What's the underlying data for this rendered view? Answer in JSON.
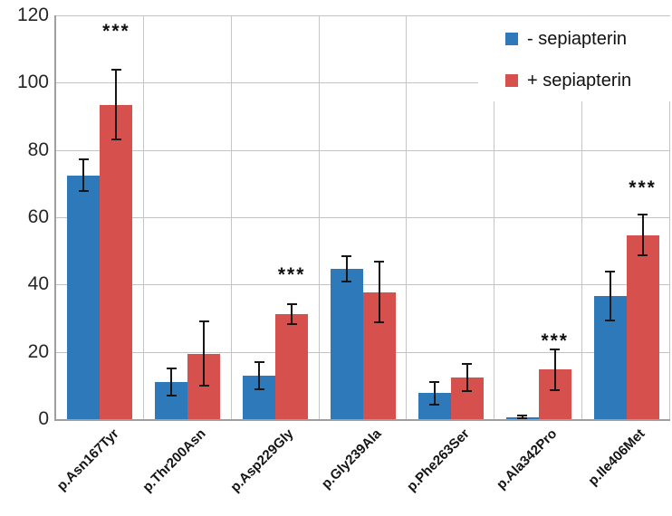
{
  "figure": {
    "background": "#ffffff",
    "text_color": "#1a1a1a",
    "gridline_color": "#c6c6c6",
    "axis_color": "#9f9f9f"
  },
  "chart_data": {
    "type": "bar",
    "title": "",
    "xlabel": "",
    "ylabel": "",
    "categories": [
      "p.Asn167Tyr",
      "p.Thr200Asn",
      "p.Asp229Gly",
      "p.Gly239Ala",
      "p.Phe263Ser",
      "p.Ala342Pro",
      "p.Ile406Met"
    ],
    "series": [
      {
        "name": "- sepiapterin",
        "color": "#2d79ba",
        "values": [
          72.5,
          11,
          13,
          44.7,
          7.7,
          0.6,
          36.5
        ],
        "errors": [
          5,
          4.4,
          4.3,
          4.1,
          3.6,
          0.5,
          7.5
        ]
      },
      {
        "name": "+ sepiapterin",
        "color": "#d6514e",
        "values": [
          93.5,
          19.5,
          31.2,
          37.8,
          12.5,
          14.7,
          54.7
        ],
        "errors": [
          10.5,
          9.9,
          3.2,
          9.4,
          4.3,
          6.3,
          6.3
        ]
      }
    ],
    "significance": [
      {
        "category_index": 0,
        "label": "***",
        "y": 112.5
      },
      {
        "category_index": 2,
        "label": "***",
        "y": 40
      },
      {
        "category_index": 5,
        "label": "***",
        "y": 20.5
      },
      {
        "category_index": 6,
        "label": "***",
        "y": 66
      }
    ],
    "ylim": [
      0,
      120
    ],
    "ytick_step": 20,
    "grid": true,
    "legend_position": "top-right"
  }
}
